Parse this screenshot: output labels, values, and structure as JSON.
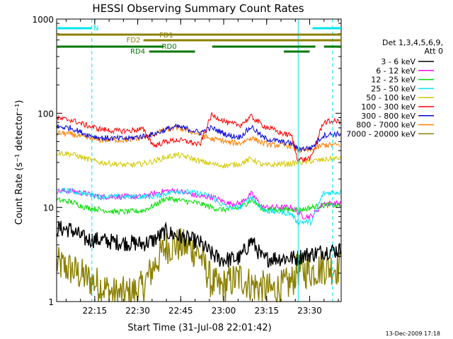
{
  "chart_data": {
    "type": "line",
    "title": "HESSI Observing Summary Count Rates",
    "xlabel": "Start Time (31-Jul-08 22:01:42)",
    "ylabel": "Count Rate (s⁻¹ detector⁻¹)",
    "y_scale": "log",
    "ylim": [
      1,
      1000
    ],
    "xlim": [
      "22:01:42",
      "23:41:00"
    ],
    "x_ticks": [
      "22:15",
      "22:30",
      "22:45",
      "23:00",
      "23:15",
      "23:30"
    ],
    "y_ticks": [
      "1",
      "10",
      "100",
      "1000"
    ],
    "footer_date": "13-Dec-2009 17:18",
    "legend": {
      "header_line1": "Det 1,3,4,5,6,9,",
      "header_line2": "Att 0",
      "placement": "right"
    },
    "status_bars": [
      {
        "name": "N",
        "color": "#00e5ee",
        "segments": [
          [
            "22:01:42",
            "22:14:00"
          ],
          [
            "23:31:00",
            "23:41:00"
          ]
        ]
      },
      {
        "name": "FD1",
        "color": "#8b8000",
        "segments": [
          [
            "22:01:42",
            "23:41:00"
          ]
        ]
      },
      {
        "name": "FD2",
        "color": "#8b8000",
        "segments": [
          [
            "22:32:00",
            "23:41:00"
          ]
        ]
      },
      {
        "name": "RD0",
        "color": "#007700",
        "segments": [
          [
            "22:01:42",
            "22:39:00"
          ],
          [
            "22:56:00",
            "23:32:00"
          ],
          [
            "23:35:00",
            "23:41:00"
          ]
        ]
      },
      {
        "name": "RD4",
        "color": "#007700",
        "segments": [
          [
            "22:34:00",
            "22:50:00"
          ],
          [
            "23:21:00",
            "23:30:00"
          ]
        ]
      }
    ],
    "vertical_markers": [
      {
        "time": "22:01:42",
        "style": "solid",
        "color": "#00e5ee"
      },
      {
        "time": "22:14:00",
        "style": "dashed",
        "color": "#00e5ee"
      },
      {
        "time": "23:26:00",
        "style": "solid",
        "color": "#00e5ee"
      },
      {
        "time": "23:38:00",
        "style": "dashed",
        "color": "#00e5ee"
      }
    ],
    "x_minutes": [
      0,
      5,
      10,
      15,
      20,
      25,
      30,
      34,
      38,
      42,
      46,
      50,
      54,
      57,
      60,
      64,
      68,
      72,
      75,
      78,
      82,
      84,
      86,
      89,
      93,
      96,
      99
    ],
    "series": [
      {
        "name": "3 - 6 keV",
        "color": "#000000",
        "values": [
          6,
          5.8,
          4.6,
          4.5,
          4.3,
          4.2,
          4.1,
          4.5,
          5.5,
          5,
          4.6,
          4.2,
          3.2,
          2.8,
          2.8,
          2.9,
          4.5,
          2.8,
          2.9,
          2.9,
          2.9,
          2.9,
          3.1,
          3.2,
          3.4,
          3.5,
          3.5
        ]
      },
      {
        "name": "6 - 12 keV",
        "color": "#ff00ff",
        "values": [
          15,
          15,
          14,
          13,
          13,
          13,
          13,
          14,
          15,
          15,
          14,
          13,
          13,
          12,
          11,
          11,
          14,
          10,
          10,
          10,
          10,
          9,
          8,
          8,
          11,
          11,
          11
        ]
      },
      {
        "name": "12 - 25 keV",
        "color": "#00dd00",
        "values": [
          12,
          11.5,
          10,
          9.5,
          9,
          9,
          9.2,
          10.5,
          12.5,
          12,
          11.5,
          11,
          10,
          9.5,
          9.5,
          10,
          12,
          9.5,
          9.5,
          9.5,
          9.5,
          9.5,
          9.5,
          10,
          10.5,
          10.5,
          10.5
        ]
      },
      {
        "name": "25 - 50 keV",
        "color": "#00e5ee",
        "values": [
          15,
          15,
          14,
          13,
          13,
          13,
          13,
          13,
          14,
          15,
          14.5,
          14,
          13,
          11,
          10,
          10,
          13,
          9.5,
          9,
          9,
          8.5,
          7,
          7,
          7,
          14,
          14.5,
          14.5
        ]
      },
      {
        "name": "50 - 100 keV",
        "color": "#d4c800",
        "values": [
          38,
          37,
          33,
          30,
          29,
          28,
          29,
          31,
          34,
          36,
          34,
          31,
          29,
          28,
          28,
          29,
          33,
          28,
          28,
          29,
          29,
          30,
          30,
          31,
          32,
          33,
          33
        ]
      },
      {
        "name": "100 - 300 keV",
        "color": "#ff0000",
        "values": [
          88,
          85,
          75,
          68,
          65,
          65,
          68,
          45,
          50,
          52,
          50,
          46,
          95,
          88,
          78,
          75,
          92,
          74,
          68,
          62,
          58,
          33,
          32,
          34,
          80,
          82,
          82
        ]
      },
      {
        "name": "300 - 800 keV",
        "color": "#0000dd",
        "values": [
          72,
          70,
          60,
          55,
          54,
          54,
          57,
          60,
          67,
          72,
          68,
          62,
          70,
          64,
          58,
          56,
          72,
          55,
          52,
          50,
          48,
          42,
          42,
          43,
          58,
          60,
          60
        ]
      },
      {
        "name": "800 - 7000 keV",
        "color": "#ff8000",
        "values": [
          62,
          60,
          55,
          52,
          52,
          52,
          55,
          60,
          67,
          70,
          65,
          60,
          53,
          52,
          49,
          48,
          55,
          48,
          46,
          46,
          45,
          40,
          40,
          41,
          46,
          46,
          46
        ]
      },
      {
        "name": "7000 - 20000 keV",
        "color": "#8b8000",
        "values": [
          2.5,
          2.2,
          1.8,
          1.5,
          1.2,
          1.2,
          1.4,
          2.4,
          3.8,
          4,
          3.8,
          3.2,
          1.6,
          1.4,
          1.6,
          1.8,
          1.5,
          1.4,
          1.3,
          1.4,
          1.6,
          2.2,
          2.1,
          2.1,
          2.3,
          2.3,
          2.3
        ]
      }
    ]
  }
}
